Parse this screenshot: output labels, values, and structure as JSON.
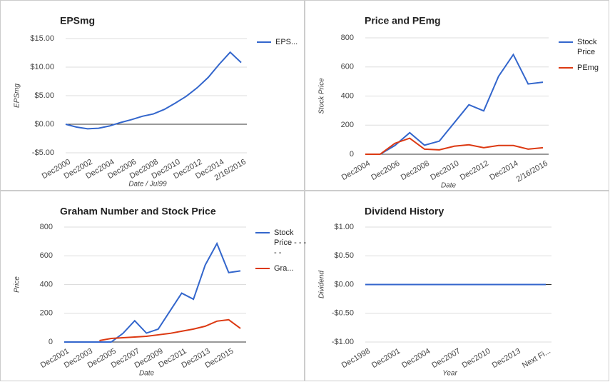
{
  "chart_data": [
    {
      "type": "line",
      "title": "EPSmg",
      "x_label": "Date / Jul99",
      "y_label": "EPSmg",
      "legend": "right",
      "grid": true,
      "categories": [
        "Dec2000",
        null,
        "Dec2002",
        null,
        "Dec2004",
        null,
        "Dec2006",
        null,
        "Dec2008",
        null,
        "Dec2010",
        null,
        "Dec2012",
        null,
        "Dec2014",
        null,
        "2/16/2016"
      ],
      "series": [
        {
          "name": "EPS...",
          "color": "#3366cc",
          "values": [
            0,
            -0.5,
            -0.8,
            -0.7,
            -0.3,
            0.3,
            0.8,
            1.4,
            1.8,
            2.6,
            3.7,
            4.9,
            6.4,
            8.2,
            10.5,
            12.6,
            10.8
          ]
        }
      ],
      "ylim": [
        -5,
        15
      ],
      "yticks": [
        {
          "value": 15,
          "label": "$15.00"
        },
        {
          "value": 10,
          "label": "$10.00"
        },
        {
          "value": 5,
          "label": "$5.00"
        },
        {
          "value": 0,
          "label": "$0.00"
        },
        {
          "value": -5,
          "label": "-$5.00"
        }
      ]
    },
    {
      "type": "line",
      "title": "Price and PEmg",
      "x_label": "Date",
      "y_label": "Stock Price",
      "legend": "right",
      "grid": true,
      "categories": [
        "Dec2004",
        null,
        "Dec2006",
        null,
        "Dec2008",
        null,
        "Dec2010",
        null,
        "Dec2012",
        null,
        "Dec2014",
        null,
        "2/16/2016"
      ],
      "series": [
        {
          "name": "Stock Price",
          "color": "#3366cc",
          "values": [
            0,
            0,
            60,
            148,
            62,
            90,
            215,
            340,
            298,
            535,
            685,
            483,
            495
          ]
        },
        {
          "name": "PEmg",
          "color": "#dc3912",
          "values": [
            0,
            0,
            75,
            110,
            35,
            30,
            55,
            65,
            45,
            60,
            60,
            35,
            45
          ]
        }
      ],
      "ylim": [
        0,
        800
      ],
      "yticks": [
        0,
        200,
        400,
        600,
        800
      ]
    },
    {
      "type": "line",
      "title": "Graham Number and Stock Price",
      "x_label": "Date",
      "y_label": "Price",
      "legend": "right",
      "grid": true,
      "categories": [
        "Dec2001",
        null,
        "Dec2003",
        null,
        "Dec2005",
        null,
        "Dec2007",
        null,
        "Dec2009",
        null,
        "Dec2011",
        null,
        "Dec2013",
        null,
        "Dec2015",
        null
      ],
      "series": [
        {
          "name": "Stock Price - - - - -",
          "color": "#3366cc",
          "values": [
            0,
            0,
            0,
            0,
            0,
            60,
            148,
            62,
            90,
            215,
            340,
            298,
            535,
            685,
            483,
            495
          ]
        },
        {
          "name": "Gra...",
          "color": "#dc3912",
          "values": [
            null,
            null,
            null,
            10,
            25,
            30,
            35,
            40,
            50,
            60,
            75,
            90,
            110,
            145,
            155,
            95
          ]
        }
      ],
      "ylim": [
        0,
        800
      ],
      "yticks": [
        0,
        200,
        400,
        600,
        800
      ]
    },
    {
      "type": "line",
      "title": "Dividend History",
      "x_label": "Year",
      "y_label": "Dividend",
      "legend": "none",
      "grid": true,
      "categories": [
        "Dec1998",
        null,
        null,
        "Dec2001",
        null,
        null,
        "Dec2004",
        null,
        null,
        "Dec2007",
        null,
        null,
        "Dec2010",
        null,
        null,
        "Dec2013",
        null,
        null,
        "Next Fi..."
      ],
      "series": [
        {
          "color": "#3366cc",
          "values": [
            0,
            0,
            0,
            0,
            0,
            0,
            0,
            0,
            0,
            0,
            0,
            0,
            0,
            0,
            0,
            0,
            0,
            0,
            0
          ]
        }
      ],
      "ylim": [
        -1,
        1
      ],
      "yticks": [
        {
          "value": 1,
          "label": "$1.00"
        },
        {
          "value": 0.5,
          "label": "$0.50"
        },
        {
          "value": 0,
          "label": "$0.00"
        },
        {
          "value": -0.5,
          "label": "-$0.50"
        },
        {
          "value": -1,
          "label": "-$1.00"
        }
      ]
    }
  ]
}
